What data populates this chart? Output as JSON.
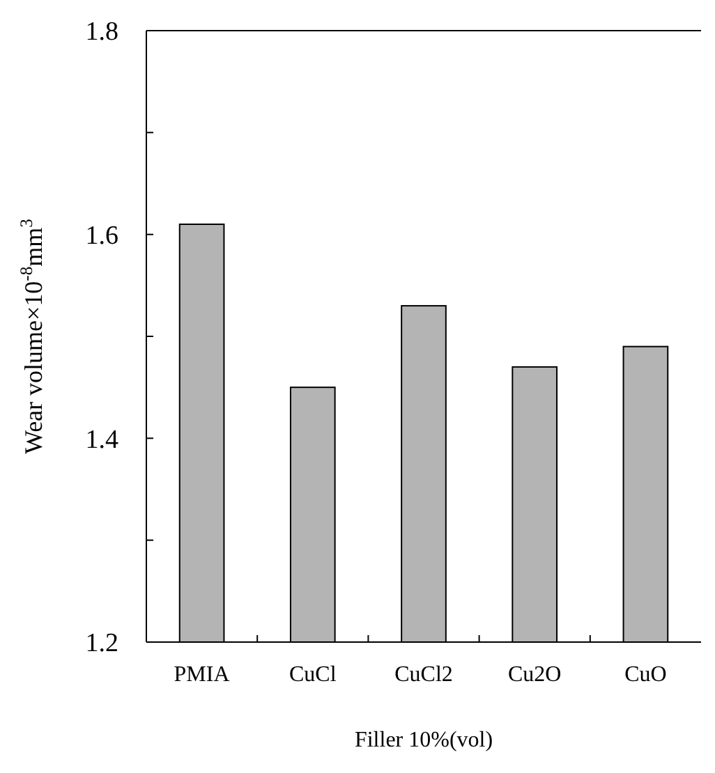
{
  "chart_data": {
    "type": "bar",
    "xlabel": "Filler 10%(vol)",
    "ylabel": "Wear volume×10$^{-8}$mm$^{3}$",
    "categories": [
      "PMIA",
      "CuCl",
      "CuCl2",
      "Cu2O",
      "CuO"
    ],
    "values": [
      1.61,
      1.45,
      1.53,
      1.47,
      1.49
    ],
    "color": "#b4b4b4",
    "ylim": [
      1.2,
      1.8
    ],
    "yticks": [
      1.2,
      {
        "value": 1.3,
        "label": null
      },
      1.4,
      {
        "value": 1.5,
        "label": null
      },
      1.6,
      {
        "value": 1.7,
        "label": null
      },
      1.8
    ],
    "grid": false
  }
}
